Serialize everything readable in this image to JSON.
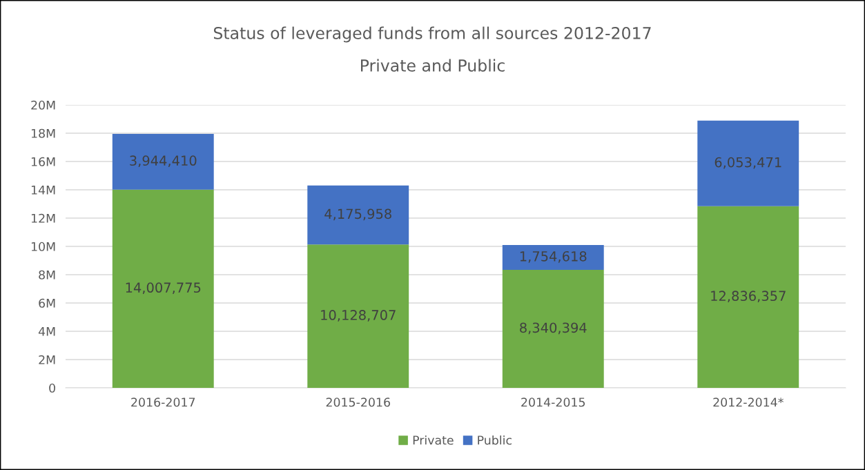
{
  "chart_data": {
    "type": "bar",
    "title": "Status of leveraged funds from all sources 2012-2017",
    "subtitle": "Private and Public",
    "categories": [
      "2016-2017",
      "2015-2016",
      "2014-2015",
      "2012-2014*"
    ],
    "stacked": true,
    "series": [
      {
        "name": "Private",
        "color": "#70ad47",
        "values": [
          14007775,
          10128707,
          8340394,
          12836357
        ],
        "value_labels": [
          "14,007,775",
          "10,128,707",
          "8,340,394",
          "12,836,357"
        ]
      },
      {
        "name": "Public",
        "color": "#4472c4",
        "values": [
          3944410,
          4175958,
          1754618,
          6053471
        ],
        "value_labels": [
          "3,944,410",
          "4,175,958",
          "1,754,618",
          "6,053,471"
        ]
      }
    ],
    "ylim": [
      0,
      20000000
    ],
    "yticks": [
      0,
      {
        "value": 2000000,
        "label": "2M"
      },
      {
        "value": 4000000,
        "label": "4M"
      },
      {
        "value": 6000000,
        "label": "6M"
      },
      {
        "value": 8000000,
        "label": "8M"
      },
      {
        "value": 10000000,
        "label": "10M"
      },
      {
        "value": 12000000,
        "label": "12M"
      },
      {
        "value": 14000000,
        "label": "14M"
      },
      {
        "value": 16000000,
        "label": "16M"
      },
      {
        "value": 18000000,
        "label": "18M"
      },
      {
        "value": 20000000,
        "label": "20M"
      }
    ],
    "grid": "y",
    "legend": "bottom"
  }
}
